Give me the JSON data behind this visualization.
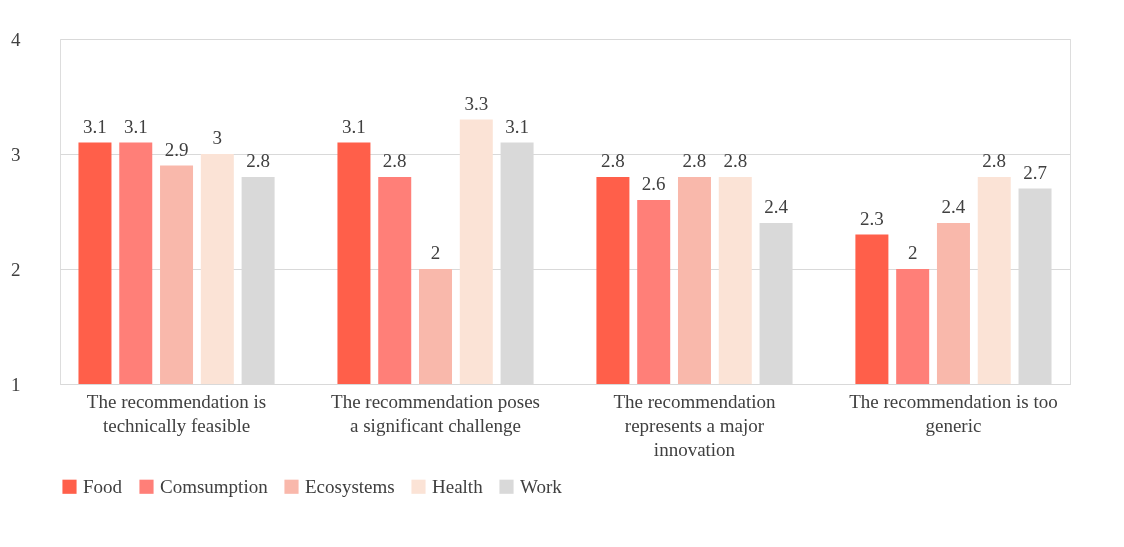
{
  "chart_data": {
    "type": "bar",
    "categories": [
      "The recommendation is technically feasible",
      "The recommendation poses a significant challenge",
      "The recommendation represents a major innovation",
      "The recommendation is too generic"
    ],
    "series": [
      {
        "name": "Food",
        "color": "#ff5f4a",
        "values": [
          3.1,
          3.1,
          2.8,
          2.3
        ]
      },
      {
        "name": "Comsumption",
        "color": "#ff7f78",
        "values": [
          3.1,
          2.8,
          2.6,
          2.0
        ]
      },
      {
        "name": "Ecosystems",
        "color": "#f9b8ab",
        "values": [
          2.9,
          2.0,
          2.8,
          2.4
        ]
      },
      {
        "name": "Health",
        "color": "#fbe3d6",
        "values": [
          3.0,
          3.3,
          2.8,
          2.8
        ]
      },
      {
        "name": "Work",
        "color": "#d9d9d9",
        "values": [
          2.8,
          3.1,
          2.4,
          2.7
        ]
      }
    ],
    "ylim": [
      1,
      4
    ],
    "yticks": [
      1,
      2,
      3,
      4
    ],
    "grid": "y",
    "legend": "bottom",
    "data_labels": true
  }
}
